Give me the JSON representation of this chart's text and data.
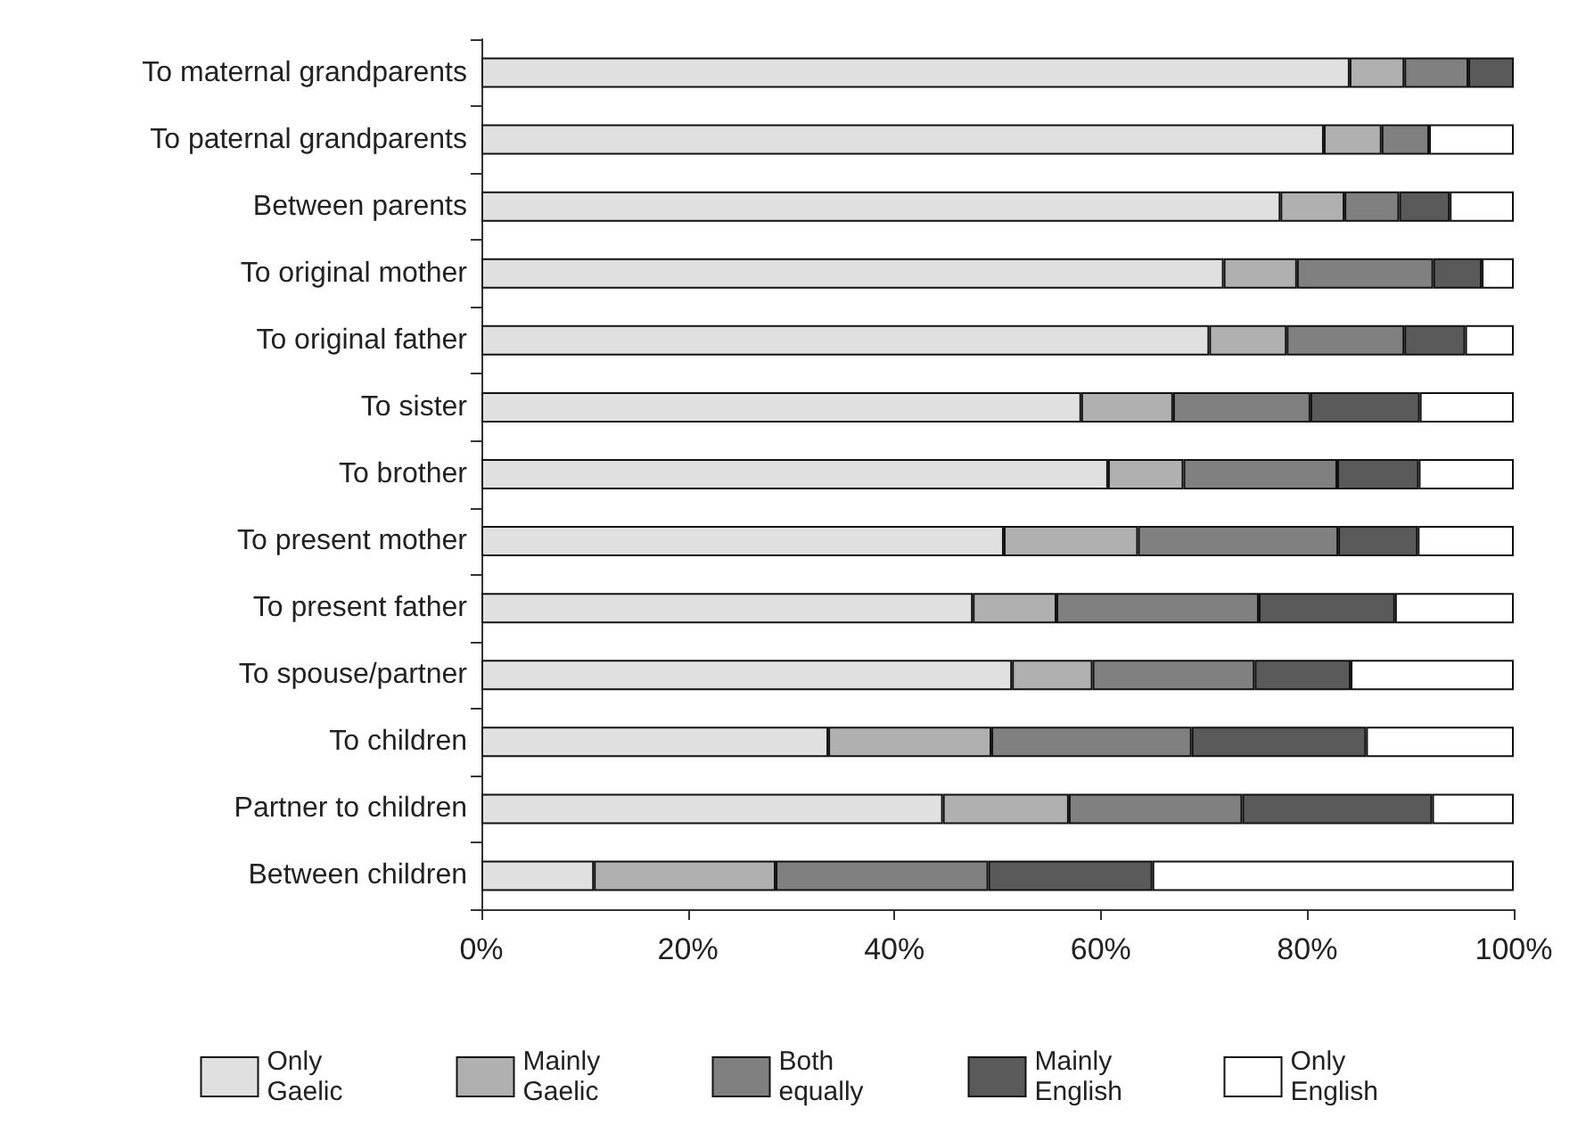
{
  "chart_data": {
    "type": "bar",
    "orientation": "horizontal",
    "stacked": true,
    "categories": [
      "To maternal grandparents",
      "To paternal grandparents",
      "Between parents",
      "To original mother",
      "To original father",
      "To sister",
      "To brother",
      "To present mother",
      "To present father",
      "To spouse/partner",
      "To children",
      "Partner to children",
      "Between children"
    ],
    "series": [
      {
        "name": "Only Gaelic",
        "color": "#e0e0e0",
        "values": [
          84.1,
          81.6,
          77.4,
          71.9,
          70.5,
          58.1,
          60.7,
          50.6,
          47.6,
          51.4,
          33.6,
          44.7,
          10.9
        ]
      },
      {
        "name": "Mainly Gaelic",
        "color": "#b0b0b0",
        "values": [
          5.3,
          5.6,
          6.2,
          7.1,
          7.5,
          8.9,
          7.3,
          13.0,
          8.1,
          7.8,
          15.8,
          12.2,
          17.6
        ]
      },
      {
        "name": "Both equally",
        "color": "#808080",
        "values": [
          6.2,
          4.6,
          5.3,
          13.2,
          11.4,
          13.3,
          14.9,
          19.4,
          19.6,
          15.7,
          19.4,
          16.8,
          20.6
        ]
      },
      {
        "name": "Mainly English",
        "color": "#5a5a5a",
        "values": [
          4.4,
          0,
          4.9,
          4.7,
          5.9,
          10.6,
          7.9,
          7.7,
          13.2,
          9.3,
          16.9,
          18.4,
          15.9
        ]
      },
      {
        "name": "Only English",
        "color": "#ffffff",
        "values": [
          0,
          8.2,
          6.2,
          3.1,
          4.7,
          9.1,
          9.2,
          9.3,
          11.5,
          15.8,
          14.3,
          7.9,
          35.0
        ]
      }
    ],
    "xlim": [
      0,
      100
    ],
    "xticks": [
      {
        "value": 0,
        "label": "0%"
      },
      {
        "value": 20,
        "label": "20%"
      },
      {
        "value": 40,
        "label": "40%"
      },
      {
        "value": 60,
        "label": "60%"
      },
      {
        "value": 80,
        "label": "80%"
      },
      {
        "value": 100,
        "label": "100%"
      }
    ],
    "grid": false,
    "legend": "bottom"
  }
}
